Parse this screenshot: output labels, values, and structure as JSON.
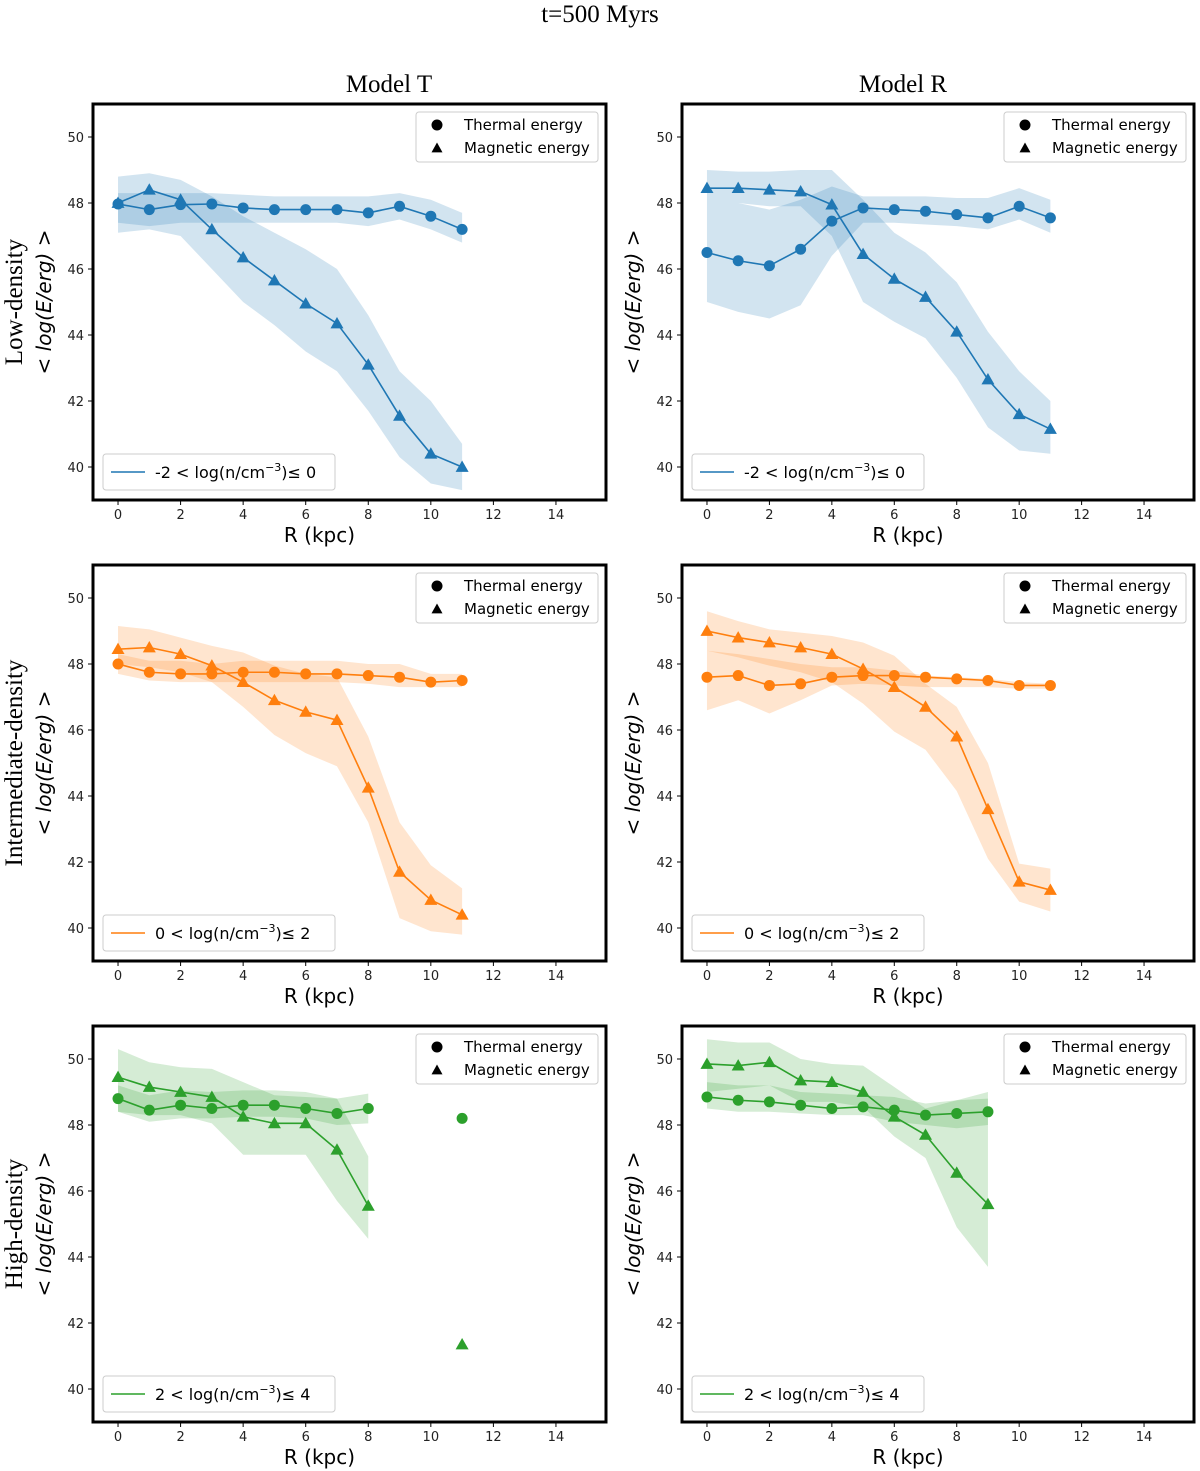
{
  "figure": {
    "title": "t=500 Myrs",
    "columns": [
      "Model T",
      "Model R"
    ],
    "rows": [
      "Low-density",
      "Intermediate-density",
      "High-density"
    ],
    "ylabel": "< log(E/erg) >",
    "xlabel": "R (kpc)",
    "legend_markers": {
      "thermal": "Thermal energy",
      "magnetic": "Magnetic energy"
    }
  },
  "chart_data": [
    {
      "type": "line",
      "panel": "low-density-model-T",
      "color": "#1f77b4",
      "title": "",
      "xlabel": "R (kpc)",
      "ylabel": "< log(E/erg) >",
      "xlim": [
        -0.8,
        15.6
      ],
      "ylim": [
        39,
        51
      ],
      "xticks": [
        0,
        2,
        4,
        6,
        8,
        10,
        12,
        14
      ],
      "yticks": [
        40,
        42,
        44,
        46,
        48,
        50
      ],
      "density_label": {
        "pre": "-2 < log(n/cm",
        "sup": "−3",
        "post": ")≤  0"
      },
      "series": [
        {
          "name": "Thermal energy",
          "marker": "circle",
          "x": [
            0,
            1,
            2,
            3,
            4,
            5,
            6,
            7,
            8,
            9,
            10,
            11
          ],
          "y": [
            47.97,
            47.8,
            47.95,
            47.97,
            47.85,
            47.8,
            47.8,
            47.8,
            47.7,
            47.9,
            47.6,
            47.2
          ],
          "upper": [
            48.3,
            48.3,
            48.3,
            48.3,
            48.25,
            48.2,
            48.2,
            48.2,
            48.2,
            48.3,
            48.1,
            47.7
          ],
          "lower": [
            47.4,
            47.3,
            47.4,
            47.4,
            47.4,
            47.4,
            47.4,
            47.4,
            47.3,
            47.5,
            47.2,
            46.8
          ]
        },
        {
          "name": "Magnetic energy",
          "marker": "triangle",
          "x": [
            0,
            1,
            2,
            3,
            4,
            5,
            6,
            7,
            8,
            9,
            10,
            11
          ],
          "y": [
            48.0,
            48.4,
            48.1,
            47.2,
            46.35,
            45.65,
            44.95,
            44.35,
            43.1,
            41.55,
            40.4,
            40.0
          ],
          "upper": [
            48.8,
            48.9,
            48.7,
            48.2,
            47.6,
            47.1,
            46.6,
            46.0,
            44.6,
            42.9,
            42.0,
            40.7
          ],
          "lower": [
            47.1,
            47.2,
            47.0,
            46.0,
            45.0,
            44.3,
            43.5,
            42.9,
            41.7,
            40.3,
            39.5,
            39.3
          ]
        }
      ]
    },
    {
      "type": "line",
      "panel": "low-density-model-R",
      "color": "#1f77b4",
      "title": "",
      "xlabel": "R (kpc)",
      "ylabel": "< log(E/erg) >",
      "xlim": [
        -0.8,
        15.6
      ],
      "ylim": [
        39,
        51
      ],
      "xticks": [
        0,
        2,
        4,
        6,
        8,
        10,
        12,
        14
      ],
      "yticks": [
        40,
        42,
        44,
        46,
        48,
        50
      ],
      "density_label": {
        "pre": "-2 < log(n/cm",
        "sup": "−3",
        "post": ")≤  0"
      },
      "series": [
        {
          "name": "Thermal energy",
          "marker": "circle",
          "x": [
            0,
            1,
            2,
            3,
            4,
            5,
            6,
            7,
            8,
            9,
            10,
            11
          ],
          "y": [
            46.5,
            46.25,
            46.1,
            46.6,
            47.45,
            47.85,
            47.8,
            47.75,
            47.65,
            47.55,
            47.9,
            47.55
          ],
          "upper": [
            48.0,
            48.0,
            47.8,
            48.1,
            48.5,
            48.2,
            48.2,
            48.2,
            48.15,
            48.15,
            48.45,
            48.1
          ],
          "lower": [
            45.0,
            44.7,
            44.5,
            44.9,
            46.4,
            47.4,
            47.4,
            47.35,
            47.3,
            47.2,
            47.5,
            47.1
          ]
        },
        {
          "name": "Magnetic energy",
          "marker": "triangle",
          "x": [
            0,
            1,
            2,
            3,
            4,
            5,
            6,
            7,
            8,
            9,
            10,
            11
          ],
          "y": [
            48.45,
            48.45,
            48.4,
            48.35,
            47.95,
            46.45,
            45.7,
            45.15,
            44.1,
            42.65,
            41.6,
            41.15
          ],
          "upper": [
            49.0,
            48.95,
            48.95,
            49.0,
            49.0,
            48.1,
            47.1,
            46.5,
            45.6,
            44.1,
            42.9,
            42.0
          ],
          "lower": [
            48.0,
            48.0,
            47.9,
            47.9,
            47.0,
            45.0,
            44.4,
            43.9,
            42.7,
            41.2,
            40.5,
            40.4
          ]
        }
      ]
    },
    {
      "type": "line",
      "panel": "intermediate-density-model-T",
      "color": "#ff7f0e",
      "title": "",
      "xlabel": "R (kpc)",
      "ylabel": "< log(E/erg) >",
      "xlim": [
        -0.8,
        15.6
      ],
      "ylim": [
        39,
        51
      ],
      "xticks": [
        0,
        2,
        4,
        6,
        8,
        10,
        12,
        14
      ],
      "yticks": [
        40,
        42,
        44,
        46,
        48,
        50
      ],
      "density_label": {
        "pre": "0 < log(n/cm",
        "sup": "−3",
        "post": ")≤  2"
      },
      "series": [
        {
          "name": "Thermal energy",
          "marker": "circle",
          "x": [
            0,
            1,
            2,
            3,
            4,
            5,
            6,
            7,
            8,
            9,
            10,
            11
          ],
          "y": [
            48.0,
            47.75,
            47.7,
            47.7,
            47.75,
            47.75,
            47.7,
            47.7,
            47.65,
            47.6,
            47.45,
            47.5
          ],
          "upper": [
            48.3,
            48.1,
            48.1,
            48.0,
            48.1,
            48.1,
            48.1,
            48.1,
            48.0,
            48.0,
            47.7,
            47.7
          ],
          "lower": [
            47.7,
            47.5,
            47.45,
            47.45,
            47.45,
            47.45,
            47.45,
            47.45,
            47.4,
            47.3,
            47.3,
            47.3
          ]
        },
        {
          "name": "Magnetic energy",
          "marker": "triangle",
          "x": [
            0,
            1,
            2,
            3,
            4,
            5,
            6,
            7,
            8,
            9,
            10,
            11
          ],
          "y": [
            48.45,
            48.5,
            48.3,
            47.95,
            47.45,
            46.9,
            46.55,
            46.3,
            44.25,
            41.7,
            40.85,
            40.4
          ],
          "upper": [
            49.15,
            49.05,
            48.8,
            48.55,
            48.35,
            47.95,
            47.7,
            47.6,
            45.8,
            43.2,
            41.9,
            41.2
          ],
          "lower": [
            48.0,
            47.9,
            47.75,
            47.45,
            46.7,
            45.85,
            45.3,
            44.9,
            43.2,
            40.3,
            39.9,
            39.8
          ]
        }
      ]
    },
    {
      "type": "line",
      "panel": "intermediate-density-model-R",
      "color": "#ff7f0e",
      "title": "",
      "xlabel": "R (kpc)",
      "ylabel": "< log(E/erg) >",
      "xlim": [
        -0.8,
        15.6
      ],
      "ylim": [
        39,
        51
      ],
      "xticks": [
        0,
        2,
        4,
        6,
        8,
        10,
        12,
        14
      ],
      "yticks": [
        40,
        42,
        44,
        46,
        48,
        50
      ],
      "density_label": {
        "pre": "0 < log(n/cm",
        "sup": "−3",
        "post": ")≤  2"
      },
      "series": [
        {
          "name": "Thermal energy",
          "marker": "circle",
          "x": [
            0,
            1,
            2,
            3,
            4,
            5,
            6,
            7,
            8,
            9,
            10,
            11
          ],
          "y": [
            47.6,
            47.65,
            47.35,
            47.4,
            47.6,
            47.65,
            47.65,
            47.6,
            47.55,
            47.5,
            47.35,
            47.35
          ],
          "upper": [
            48.4,
            48.3,
            48.15,
            48.0,
            47.9,
            47.9,
            47.8,
            47.65,
            47.6,
            47.55,
            47.45,
            47.4
          ],
          "lower": [
            46.6,
            46.9,
            46.5,
            46.9,
            47.35,
            47.4,
            47.35,
            47.3,
            47.3,
            47.3,
            47.25,
            47.25
          ]
        },
        {
          "name": "Magnetic energy",
          "marker": "triangle",
          "x": [
            0,
            1,
            2,
            3,
            4,
            5,
            6,
            7,
            8,
            9,
            10,
            11
          ],
          "y": [
            49.0,
            48.8,
            48.65,
            48.5,
            48.3,
            47.85,
            47.3,
            46.7,
            45.8,
            43.6,
            41.4,
            41.15
          ],
          "upper": [
            49.6,
            49.3,
            49.05,
            48.95,
            48.85,
            48.65,
            48.25,
            47.4,
            46.7,
            45.0,
            41.95,
            41.8
          ],
          "lower": [
            48.4,
            48.2,
            47.95,
            47.75,
            47.45,
            46.8,
            45.95,
            45.4,
            44.15,
            42.1,
            40.8,
            40.5
          ]
        }
      ]
    },
    {
      "type": "line",
      "panel": "high-density-model-T",
      "color": "#2ca02c",
      "title": "",
      "xlabel": "R (kpc)",
      "ylabel": "< log(E/erg) >",
      "xlim": [
        -0.8,
        15.6
      ],
      "ylim": [
        39,
        51
      ],
      "xticks": [
        0,
        2,
        4,
        6,
        8,
        10,
        12,
        14
      ],
      "yticks": [
        40,
        42,
        44,
        46,
        48,
        50
      ],
      "density_label": {
        "pre": "2 < log(n/cm",
        "sup": "−3",
        "post": ")≤  4"
      },
      "series": [
        {
          "name": "Thermal energy",
          "marker": "circle",
          "x": [
            0,
            1,
            2,
            3,
            4,
            5,
            6,
            7,
            8
          ],
          "y": [
            48.8,
            48.45,
            48.6,
            48.5,
            48.6,
            48.6,
            48.5,
            48.35,
            48.5
          ],
          "upper": [
            49.2,
            48.9,
            49.05,
            49.0,
            49.05,
            49.05,
            49.0,
            48.8,
            48.95
          ],
          "lower": [
            48.4,
            48.1,
            48.2,
            48.2,
            48.25,
            48.25,
            48.2,
            48.0,
            48.05
          ],
          "isolated": {
            "x": 11,
            "y": 48.2
          }
        },
        {
          "name": "Magnetic energy",
          "marker": "triangle",
          "x": [
            0,
            1,
            2,
            3,
            4,
            5,
            6,
            7,
            8
          ],
          "y": [
            49.45,
            49.15,
            49.0,
            48.85,
            48.25,
            48.05,
            48.05,
            47.25,
            45.55
          ],
          "upper": [
            50.3,
            49.9,
            49.75,
            49.7,
            49.3,
            48.9,
            48.85,
            48.8,
            47.05
          ],
          "lower": [
            48.4,
            48.3,
            48.3,
            48.05,
            47.1,
            47.1,
            47.1,
            45.7,
            44.55
          ],
          "isolated": {
            "x": 11,
            "y": 41.35
          }
        }
      ]
    },
    {
      "type": "line",
      "panel": "high-density-model-R",
      "color": "#2ca02c",
      "title": "",
      "xlabel": "R (kpc)",
      "ylabel": "< log(E/erg) >",
      "xlim": [
        -0.8,
        15.6
      ],
      "ylim": [
        39,
        51
      ],
      "xticks": [
        0,
        2,
        4,
        6,
        8,
        10,
        12,
        14
      ],
      "yticks": [
        40,
        42,
        44,
        46,
        48,
        50
      ],
      "density_label": {
        "pre": "2 < log(n/cm",
        "sup": "−3",
        "post": ")≤  4"
      },
      "series": [
        {
          "name": "Thermal energy",
          "marker": "circle",
          "x": [
            0,
            1,
            2,
            3,
            4,
            5,
            6,
            7,
            8,
            9
          ],
          "y": [
            48.85,
            48.75,
            48.7,
            48.6,
            48.5,
            48.55,
            48.45,
            48.3,
            48.35,
            48.4
          ],
          "upper": [
            49.3,
            49.2,
            49.2,
            49.0,
            48.95,
            48.9,
            48.85,
            48.65,
            48.75,
            48.8
          ],
          "lower": [
            48.5,
            48.4,
            48.4,
            48.35,
            48.3,
            48.3,
            48.1,
            48.0,
            47.9,
            48.0
          ]
        },
        {
          "name": "Magnetic energy",
          "marker": "triangle",
          "x": [
            0,
            1,
            2,
            3,
            4,
            5,
            6,
            7,
            8,
            9
          ],
          "y": [
            49.85,
            49.8,
            49.9,
            49.35,
            49.3,
            49.0,
            48.25,
            47.7,
            46.55,
            45.6
          ],
          "upper": [
            50.6,
            50.5,
            50.5,
            50.0,
            49.85,
            49.8,
            49.15,
            48.5,
            48.75,
            49.0
          ],
          "lower": [
            49.0,
            49.1,
            49.2,
            48.7,
            48.7,
            48.55,
            47.65,
            47.0,
            44.9,
            43.7
          ]
        }
      ]
    }
  ]
}
